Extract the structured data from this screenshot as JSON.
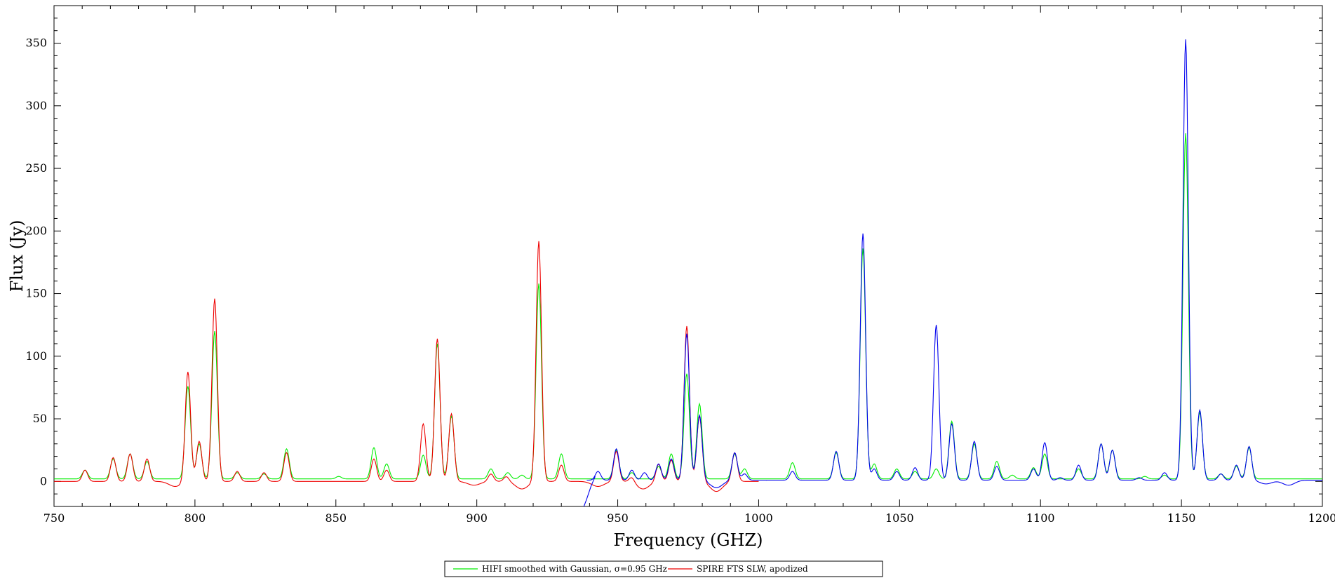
{
  "chart_data": {
    "type": "line",
    "title": "",
    "xlabel": "Frequency (GHZ)",
    "ylabel": "Flux (Jy)",
    "xlim": [
      750,
      1200
    ],
    "ylim": [
      -20,
      380
    ],
    "xticks": [
      750,
      800,
      850,
      900,
      950,
      1000,
      1050,
      1100,
      1150,
      1200
    ],
    "yticks": [
      0,
      50,
      100,
      150,
      200,
      250,
      300,
      350
    ],
    "grid": false,
    "legend_position": "bottom-center",
    "series": [
      {
        "name": "HIFI smoothed with Gaussian, σ=0.95 GHz",
        "color": "#00ee00",
        "baseline": 2,
        "range": [
          750,
          1200
        ],
        "peaks": [
          [
            761,
            9
          ],
          [
            771,
            18
          ],
          [
            777,
            22
          ],
          [
            783,
            16
          ],
          [
            797.5,
            76
          ],
          [
            801.5,
            30
          ],
          [
            807,
            120
          ],
          [
            815,
            7
          ],
          [
            824.5,
            6
          ],
          [
            832.5,
            26
          ],
          [
            851,
            4
          ],
          [
            863.5,
            27
          ],
          [
            868,
            14
          ],
          [
            881,
            21
          ],
          [
            886,
            110
          ],
          [
            891,
            52
          ],
          [
            905,
            10
          ],
          [
            911,
            7
          ],
          [
            916,
            5
          ],
          [
            922,
            158
          ],
          [
            930,
            22
          ],
          [
            949.5,
            25
          ],
          [
            955,
            7
          ],
          [
            964.5,
            12
          ],
          [
            969,
            22
          ],
          [
            974.5,
            86
          ],
          [
            979,
            62
          ],
          [
            991.5,
            22
          ],
          [
            995,
            10
          ],
          [
            1012,
            15
          ],
          [
            1027.5,
            23
          ],
          [
            1037,
            186
          ],
          [
            1041,
            14
          ],
          [
            1049,
            10
          ],
          [
            1055.5,
            8
          ],
          [
            1063,
            10
          ],
          [
            1068.5,
            48
          ],
          [
            1076.5,
            30
          ],
          [
            1084.5,
            16
          ],
          [
            1090,
            5
          ],
          [
            1097.5,
            11
          ],
          [
            1101.5,
            22
          ],
          [
            1113.5,
            10
          ],
          [
            1121.5,
            30
          ],
          [
            1125.5,
            25
          ],
          [
            1137,
            4
          ],
          [
            1144,
            5
          ],
          [
            1151.5,
            278
          ],
          [
            1156.5,
            55
          ],
          [
            1164,
            6
          ],
          [
            1169.5,
            12
          ],
          [
            1174,
            27
          ]
        ]
      },
      {
        "name": "SPIRE FTS SLW, apodized",
        "color": "#ee0000",
        "baseline": 0,
        "range": [
          750,
          1000
        ],
        "peaks": [
          [
            761,
            9
          ],
          [
            771,
            19
          ],
          [
            777,
            22
          ],
          [
            783,
            18
          ],
          [
            797.5,
            88
          ],
          [
            801.5,
            32
          ],
          [
            807,
            146
          ],
          [
            815,
            8
          ],
          [
            824.5,
            7
          ],
          [
            832.5,
            23
          ],
          [
            863.5,
            18
          ],
          [
            868,
            9
          ],
          [
            881,
            46
          ],
          [
            886,
            114
          ],
          [
            891,
            54
          ],
          [
            905,
            6
          ],
          [
            910.5,
            4
          ],
          [
            922,
            192
          ],
          [
            930,
            13
          ],
          [
            949.5,
            24
          ],
          [
            955,
            4
          ],
          [
            964.5,
            14
          ],
          [
            969,
            17
          ],
          [
            974.5,
            124
          ],
          [
            979,
            52
          ],
          [
            991.5,
            23
          ]
        ],
        "dips": [
          [
            793,
            -4
          ],
          [
            899,
            -3
          ],
          [
            916,
            -6
          ],
          [
            943,
            -4
          ],
          [
            959,
            -6
          ],
          [
            985,
            -8
          ]
        ]
      },
      {
        "name": "",
        "color": "#0000ee",
        "baseline": 1,
        "range": [
          939,
          1200
        ],
        "peaks": [
          [
            943,
            8
          ],
          [
            949.5,
            26
          ],
          [
            955,
            9
          ],
          [
            959.5,
            7
          ],
          [
            964.5,
            14
          ],
          [
            969,
            18
          ],
          [
            974.5,
            118
          ],
          [
            979,
            53
          ],
          [
            991.5,
            23
          ],
          [
            995,
            6
          ],
          [
            1012,
            8
          ],
          [
            1027.5,
            24
          ],
          [
            1037,
            198
          ],
          [
            1041,
            10
          ],
          [
            1049,
            8
          ],
          [
            1055.5,
            11
          ],
          [
            1063,
            125
          ],
          [
            1068.5,
            46
          ],
          [
            1076.5,
            32
          ],
          [
            1084.5,
            12
          ],
          [
            1097.5,
            10
          ],
          [
            1101.5,
            31
          ],
          [
            1107,
            3
          ],
          [
            1113.5,
            13
          ],
          [
            1121.5,
            30
          ],
          [
            1125.5,
            25
          ],
          [
            1135,
            3
          ],
          [
            1144,
            7
          ],
          [
            1151.5,
            353
          ],
          [
            1156.5,
            57
          ],
          [
            1164,
            6
          ],
          [
            1169.5,
            13
          ],
          [
            1174,
            28
          ]
        ],
        "dips": [
          [
            985,
            -5
          ],
          [
            1180,
            -2
          ],
          [
            1188,
            -3
          ]
        ]
      }
    ],
    "legend": {
      "entries": [
        "HIFI smoothed with Gaussian, σ=0.95 GHz",
        "SPIRE FTS SLW, apodized"
      ]
    }
  }
}
